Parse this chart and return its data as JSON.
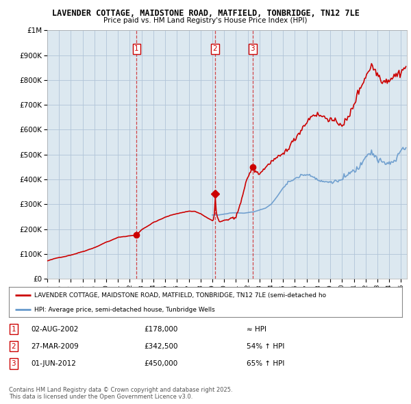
{
  "title": "LAVENDER COTTAGE, MAIDSTONE ROAD, MATFIELD, TONBRIDGE, TN12 7LE",
  "subtitle": "Price paid vs. HM Land Registry's House Price Index (HPI)",
  "legend_property": "LAVENDER COTTAGE, MAIDSTONE ROAD, MATFIELD, TONBRIDGE, TN12 7LE (semi-detached ho",
  "legend_hpi": "HPI: Average price, semi-detached house, Tunbridge Wells",
  "footnote": "Contains HM Land Registry data © Crown copyright and database right 2025.\nThis data is licensed under the Open Government Licence v3.0.",
  "sale_events": [
    {
      "num": 1,
      "date": "02-AUG-2002",
      "price": "£178,000",
      "relation": "≈ HPI",
      "year": 2002.58
    },
    {
      "num": 2,
      "date": "27-MAR-2009",
      "price": "£342,500",
      "relation": "54% ↑ HPI",
      "year": 2009.23
    },
    {
      "num": 3,
      "date": "01-JUN-2012",
      "price": "£450,000",
      "relation": "65% ↑ HPI",
      "year": 2012.42
    }
  ],
  "property_color": "#cc0000",
  "hpi_color": "#6699cc",
  "vline_color": "#cc0000",
  "chart_bg": "#dce8f0",
  "background_color": "#ffffff",
  "grid_color": "#b0c4d8",
  "ylim": [
    0,
    1000000
  ],
  "xlim_start": 1995.0,
  "xlim_end": 2025.5,
  "sale_dot_values": [
    {
      "year": 2002.58,
      "value": 178000
    },
    {
      "year": 2009.23,
      "value": 342500
    },
    {
      "year": 2012.42,
      "value": 450000
    }
  ]
}
